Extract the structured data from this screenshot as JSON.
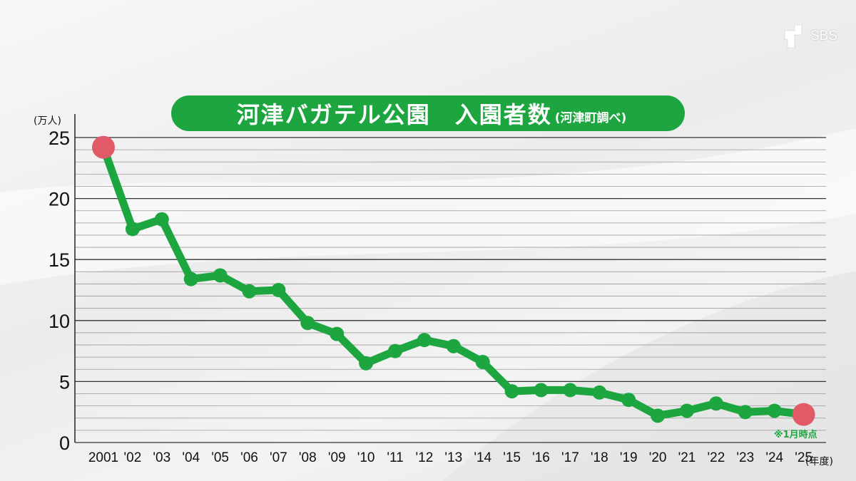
{
  "title": {
    "main": "河津バガテル公園　入園者数",
    "sub": "(河津町調べ)"
  },
  "logo": {
    "text": "SBS"
  },
  "colors": {
    "line": "#1da640",
    "endpoint": "#e05a68",
    "pill": "#1da640"
  },
  "chart_data": {
    "type": "line",
    "title": "河津バガテル公園　入園者数",
    "ylabel": "(万人)",
    "xlabel": "(年度)",
    "ylim": [
      0,
      25
    ],
    "y_ticks": [
      "0",
      "5",
      "10",
      "15",
      "20",
      "25"
    ],
    "grid": true,
    "categories": [
      "2001",
      "'02",
      "'03",
      "'04",
      "'05",
      "'06",
      "'07",
      "'08",
      "'09",
      "'10",
      "'11",
      "'12",
      "'13",
      "'14",
      "'15",
      "'16",
      "'17",
      "'18",
      "'19",
      "'20",
      "'21",
      "'22",
      "'23",
      "'24",
      "'25"
    ],
    "values": [
      24.2,
      17.5,
      18.3,
      13.4,
      13.7,
      12.4,
      12.5,
      9.8,
      8.9,
      6.5,
      7.5,
      8.4,
      7.9,
      6.6,
      4.2,
      4.3,
      4.3,
      4.1,
      3.5,
      2.2,
      2.6,
      3.2,
      2.5,
      2.6,
      2.3
    ],
    "annotation": "※1月時点"
  }
}
